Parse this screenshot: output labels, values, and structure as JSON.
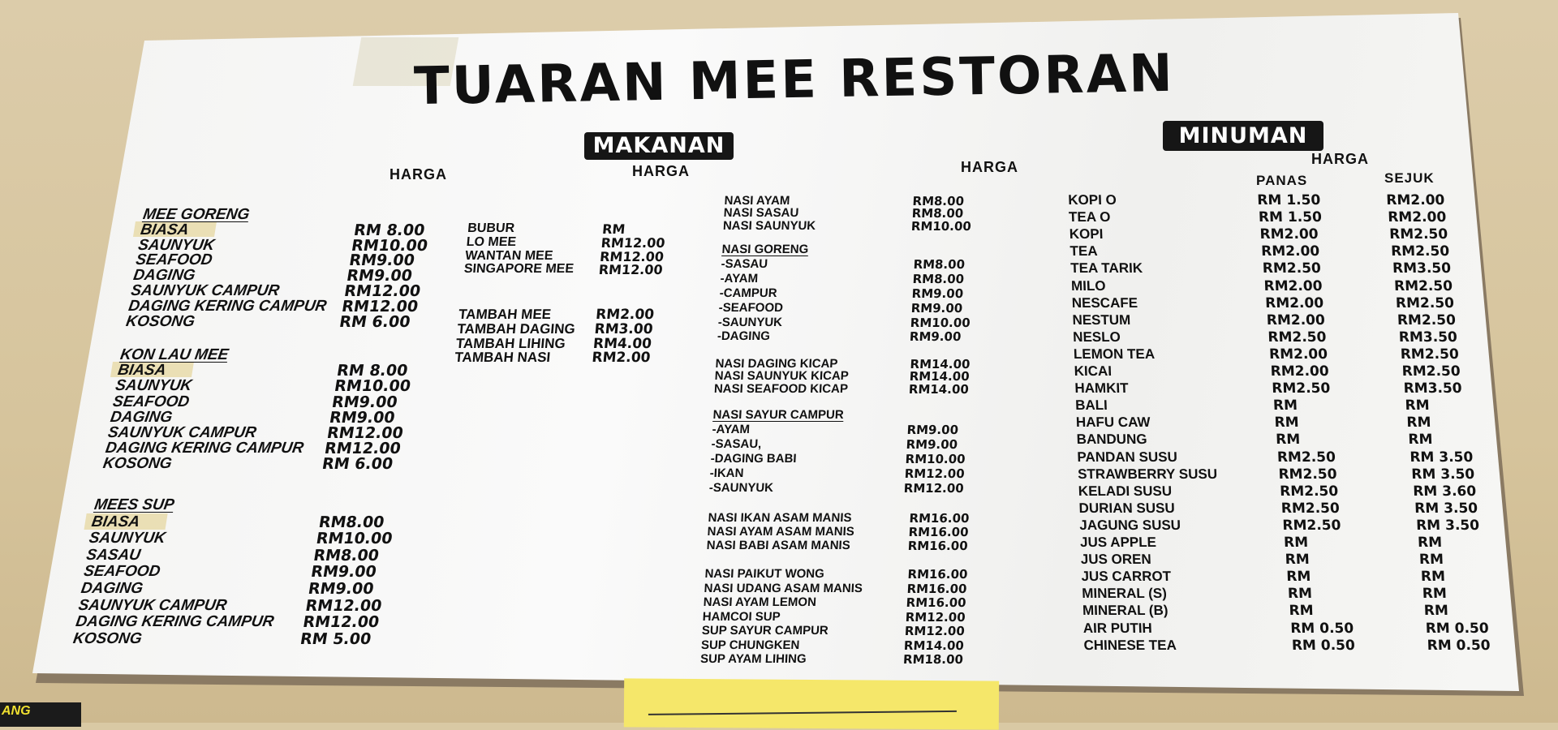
{
  "title": "TUARAN MEE RESTORAN",
  "makanan_label": "MAKANAN",
  "minuman_label": "MINUMAN",
  "harga_label": "HARGA",
  "panas_label": "PANAS",
  "sejuk_label": "SEJUK",
  "wall_sign_text": "ANG",
  "colors": {
    "board": "#f5f5f3",
    "text": "#111111",
    "badge": "#161616",
    "wall": "#d9c9a4",
    "note": "#f5e76a"
  },
  "makanan": {
    "mee_goreng": {
      "heading": "MEE GORENG",
      "items": [
        {
          "name": "BIASA",
          "price": "RM 8.00",
          "tape": true
        },
        {
          "name": "SAUNYUK",
          "price": "RM10.00"
        },
        {
          "name": "SEAFOOD",
          "price": "RM9.00"
        },
        {
          "name": "DAGING",
          "price": "RM9.00"
        },
        {
          "name": "SAUNYUK CAMPUR",
          "price": "RM12.00"
        },
        {
          "name": "DAGING KERING CAMPUR",
          "price": "RM12.00"
        },
        {
          "name": "KOSONG",
          "price": "RM 6.00"
        }
      ]
    },
    "kon_lau_mee": {
      "heading": "KON LAU MEE",
      "items": [
        {
          "name": "BIASA",
          "price": "RM 8.00",
          "tape": true
        },
        {
          "name": "SAUNYUK",
          "price": "RM10.00"
        },
        {
          "name": "SEAFOOD",
          "price": "RM9.00"
        },
        {
          "name": "DAGING",
          "price": "RM9.00"
        },
        {
          "name": "SAUNYUK CAMPUR",
          "price": "RM12.00"
        },
        {
          "name": "DAGING KERING CAMPUR",
          "price": "RM12.00"
        },
        {
          "name": "KOSONG",
          "price": "RM 6.00"
        }
      ]
    },
    "mees_sup": {
      "heading": "MEES SUP",
      "items": [
        {
          "name": "BIASA",
          "price": "RM8.00",
          "tape": true
        },
        {
          "name": "SAUNYUK",
          "price": "RM10.00"
        },
        {
          "name": "SASAU",
          "price": "RM8.00"
        },
        {
          "name": "SEAFOOD",
          "price": "RM9.00"
        },
        {
          "name": "DAGING",
          "price": "RM9.00"
        },
        {
          "name": "SAUNYUK CAMPUR",
          "price": "RM12.00"
        },
        {
          "name": "DAGING KERING CAMPUR",
          "price": "RM12.00"
        },
        {
          "name": "KOSONG",
          "price": "RM 5.00"
        }
      ]
    },
    "mee_lain": {
      "items": [
        {
          "name": "BUBUR",
          "price": "RM"
        },
        {
          "name": "LO MEE",
          "price": "RM12.00"
        },
        {
          "name": "WANTAN MEE",
          "price": "RM12.00"
        },
        {
          "name": "SINGAPORE MEE",
          "price": "RM12.00"
        }
      ]
    },
    "tambah": {
      "items": [
        {
          "name": "TAMBAH MEE",
          "price": "RM2.00"
        },
        {
          "name": "TAMBAH DAGING",
          "price": "RM3.00"
        },
        {
          "name": "TAMBAH LIHING",
          "price": "RM4.00"
        },
        {
          "name": "TAMBAH NASI",
          "price": "RM2.00"
        }
      ]
    },
    "nasi": {
      "items": [
        {
          "name": "NASI AYAM",
          "price": "RM8.00"
        },
        {
          "name": "NASI SASAU",
          "price": "RM8.00"
        },
        {
          "name": "NASI SAUNYUK",
          "price": "RM10.00"
        }
      ]
    },
    "nasi_goreng": {
      "heading": "NASI GORENG",
      "items": [
        {
          "name": "-SASAU",
          "price": "RM8.00"
        },
        {
          "name": "-AYAM",
          "price": "RM8.00"
        },
        {
          "name": "-CAMPUR",
          "price": "RM9.00"
        },
        {
          "name": "-SEAFOOD",
          "price": "RM9.00"
        },
        {
          "name": "-SAUNYUK",
          "price": "RM10.00"
        },
        {
          "name": "-DAGING",
          "price": "RM9.00"
        }
      ]
    },
    "kicap": {
      "items": [
        {
          "name": "NASI DAGING KICAP",
          "price": "RM14.00"
        },
        {
          "name": "NASI SAUNYUK KICAP",
          "price": "RM14.00"
        },
        {
          "name": "NASI SEAFOOD KICAP",
          "price": "RM14.00"
        }
      ]
    },
    "nasi_sayur_campur": {
      "heading": "NASI SAYUR CAMPUR",
      "items": [
        {
          "name": "-AYAM",
          "price": "RM9.00"
        },
        {
          "name": "-SASAU,",
          "price": "RM9.00"
        },
        {
          "name": "-DAGING BABI",
          "price": "RM10.00"
        },
        {
          "name": "-IKAN",
          "price": "RM12.00"
        },
        {
          "name": "-SAUNYUK",
          "price": "RM12.00"
        }
      ]
    },
    "asam_manis": {
      "items": [
        {
          "name": "NASI IKAN ASAM MANIS",
          "price": "RM16.00"
        },
        {
          "name": "NASI AYAM ASAM MANIS",
          "price": "RM16.00"
        },
        {
          "name": "NASI BABI ASAM MANIS",
          "price": "RM16.00"
        }
      ]
    },
    "lain_lain": {
      "items": [
        {
          "name": "NASI PAIKUT WONG",
          "price": "RM16.00"
        },
        {
          "name": "NASI UDANG ASAM MANIS",
          "price": "RM16.00"
        },
        {
          "name": "NASI AYAM LEMON",
          "price": "RM16.00"
        },
        {
          "name": "HAMCOI SUP",
          "price": "RM12.00"
        },
        {
          "name": "SUP SAYUR CAMPUR",
          "price": "RM12.00"
        },
        {
          "name": "SUP CHUNGKEN",
          "price": "RM14.00"
        },
        {
          "name": "SUP AYAM LIHING",
          "price": "RM18.00"
        }
      ]
    }
  },
  "minuman": {
    "items": [
      {
        "name": "KOPI O",
        "panas": "RM 1.50",
        "sejuk": "RM2.00"
      },
      {
        "name": "TEA O",
        "panas": "RM 1.50",
        "sejuk": "RM2.00"
      },
      {
        "name": "KOPI",
        "panas": "RM2.00",
        "sejuk": "RM2.50"
      },
      {
        "name": "TEA",
        "panas": "RM2.00",
        "sejuk": "RM2.50"
      },
      {
        "name": "TEA TARIK",
        "panas": "RM2.50",
        "sejuk": "RM3.50"
      },
      {
        "name": "MILO",
        "panas": "RM2.00",
        "sejuk": "RM2.50"
      },
      {
        "name": "NESCAFE",
        "panas": "RM2.00",
        "sejuk": "RM2.50"
      },
      {
        "name": "NESTUM",
        "panas": "RM2.00",
        "sejuk": "RM2.50"
      },
      {
        "name": "NESLO",
        "panas": "RM2.50",
        "sejuk": "RM3.50"
      },
      {
        "name": "LEMON TEA",
        "panas": "RM2.00",
        "sejuk": "RM2.50"
      },
      {
        "name": "KICAI",
        "panas": "RM2.00",
        "sejuk": "RM2.50"
      },
      {
        "name": "HAMKIT",
        "panas": "RM2.50",
        "sejuk": "RM3.50"
      },
      {
        "name": "BALI",
        "panas": "RM",
        "sejuk": "RM"
      },
      {
        "name": "HAFU CAW",
        "panas": "RM",
        "sejuk": "RM"
      },
      {
        "name": "BANDUNG",
        "panas": "RM",
        "sejuk": "RM"
      },
      {
        "name": "PANDAN SUSU",
        "panas": "RM2.50",
        "sejuk": "RM 3.50"
      },
      {
        "name": "STRAWBERRY SUSU",
        "panas": "RM2.50",
        "sejuk": "RM 3.50"
      },
      {
        "name": "KELADI SUSU",
        "panas": "RM2.50",
        "sejuk": "RM 3.60"
      },
      {
        "name": "DURIAN SUSU",
        "panas": "RM2.50",
        "sejuk": "RM 3.50"
      },
      {
        "name": "JAGUNG SUSU",
        "panas": "RM2.50",
        "sejuk": "RM 3.50"
      },
      {
        "name": "JUS APPLE",
        "panas": "RM",
        "sejuk": "RM"
      },
      {
        "name": "JUS OREN",
        "panas": "RM",
        "sejuk": "RM"
      },
      {
        "name": "JUS CARROT",
        "panas": "RM",
        "sejuk": "RM"
      },
      {
        "name": "MINERAL (S)",
        "panas": "RM",
        "sejuk": "RM"
      },
      {
        "name": "MINERAL (B)",
        "panas": "RM",
        "sejuk": "RM"
      },
      {
        "name": "AIR PUTIH",
        "panas": "RM 0.50",
        "sejuk": "RM 0.50"
      },
      {
        "name": "CHINESE TEA",
        "panas": "RM 0.50",
        "sejuk": "RM 0.50"
      }
    ]
  }
}
